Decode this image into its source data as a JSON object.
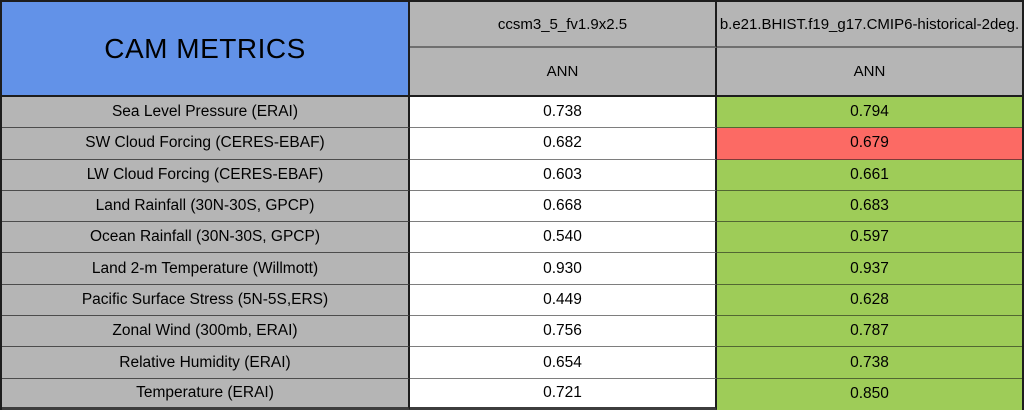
{
  "table": {
    "title": "CAM METRICS",
    "columns": [
      {
        "model": "ccsm3_5_fv1.9x2.5",
        "season": "ANN"
      },
      {
        "model": "b.e21.BHIST.f19_g17.CMIP6-historical-2deg.",
        "season": "ANN"
      }
    ],
    "rows": [
      {
        "label": "Sea Level Pressure (ERAI)",
        "values": [
          {
            "text": "0.738",
            "status": "plain"
          },
          {
            "text": "0.794",
            "status": "better"
          }
        ]
      },
      {
        "label": "SW Cloud Forcing (CERES-EBAF)",
        "values": [
          {
            "text": "0.682",
            "status": "plain"
          },
          {
            "text": "0.679",
            "status": "worse"
          }
        ]
      },
      {
        "label": "LW Cloud Forcing (CERES-EBAF)",
        "values": [
          {
            "text": "0.603",
            "status": "plain"
          },
          {
            "text": "0.661",
            "status": "better"
          }
        ]
      },
      {
        "label": "Land Rainfall (30N-30S, GPCP)",
        "values": [
          {
            "text": "0.668",
            "status": "plain"
          },
          {
            "text": "0.683",
            "status": "better"
          }
        ]
      },
      {
        "label": "Ocean Rainfall (30N-30S, GPCP)",
        "values": [
          {
            "text": "0.540",
            "status": "plain"
          },
          {
            "text": "0.597",
            "status": "better"
          }
        ]
      },
      {
        "label": "Land 2-m Temperature (Willmott)",
        "values": [
          {
            "text": "0.930",
            "status": "plain"
          },
          {
            "text": "0.937",
            "status": "better"
          }
        ]
      },
      {
        "label": "Pacific Surface Stress (5N-5S,ERS)",
        "values": [
          {
            "text": "0.449",
            "status": "plain"
          },
          {
            "text": "0.628",
            "status": "better"
          }
        ]
      },
      {
        "label": "Zonal Wind (300mb, ERAI)",
        "values": [
          {
            "text": "0.756",
            "status": "plain"
          },
          {
            "text": "0.787",
            "status": "better"
          }
        ]
      },
      {
        "label": "Relative Humidity (ERAI)",
        "values": [
          {
            "text": "0.654",
            "status": "plain"
          },
          {
            "text": "0.738",
            "status": "better"
          }
        ]
      },
      {
        "label": "Temperature (ERAI)",
        "values": [
          {
            "text": "0.721",
            "status": "plain"
          },
          {
            "text": "0.850",
            "status": "better"
          }
        ]
      }
    ]
  },
  "colors": {
    "header_blue": "#6292E8",
    "header_gray": "#B5B5B5",
    "better_green": "#9ECC58",
    "worse_red": "#FC6A64",
    "cell_white": "#FFFFFF",
    "grid_dark": "#1D1D1D"
  }
}
